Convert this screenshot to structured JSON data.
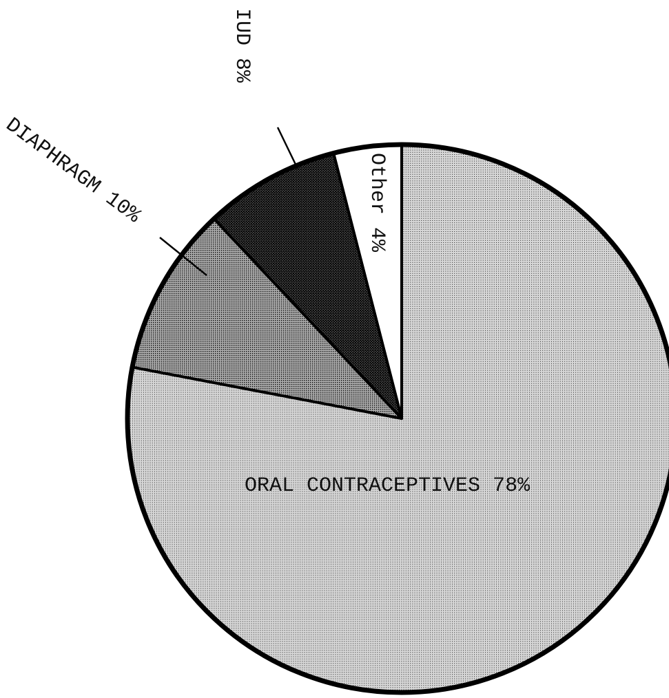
{
  "chart_data": {
    "type": "pie",
    "categories": [
      "Other",
      "IUD",
      "DIAPHRAGM",
      "ORAL CONTRACEPTIVES"
    ],
    "values": [
      4,
      8,
      10,
      78
    ],
    "value_labels": [
      "4%",
      "8%",
      "10%",
      "78%"
    ],
    "colors": [
      "#ffffff",
      "#555555",
      "#a9a9a9",
      "#d6d6d6"
    ]
  }
}
